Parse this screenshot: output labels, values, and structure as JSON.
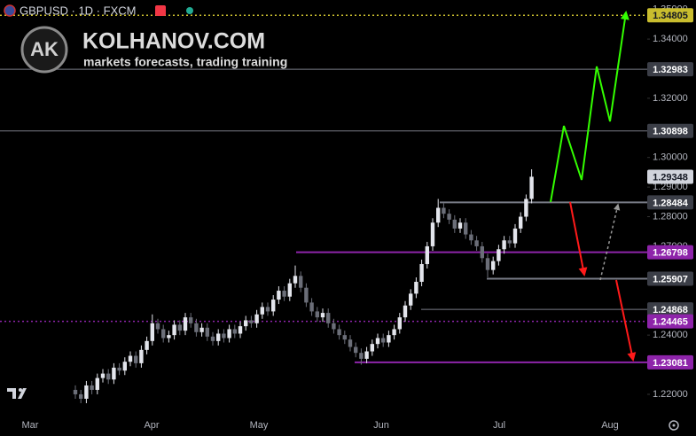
{
  "header": {
    "symbol": "GBPUSD · 1D · FXCM"
  },
  "watermark": {
    "logo": "AK",
    "title": "KOLHANOV.COM",
    "subtitle": "markets forecasts, trading training"
  },
  "chart_data": {
    "type": "candlestick",
    "up_color": "#e3e5ec",
    "down_color": "#6b6e78",
    "open": [
      1.2215,
      1.22,
      1.2185,
      1.223,
      1.2215,
      1.2255,
      1.227,
      1.225,
      1.229,
      1.228,
      1.231,
      1.233,
      1.2305,
      1.235,
      1.238,
      1.244,
      1.242,
      1.239,
      1.24,
      1.2435,
      1.2415,
      1.246,
      1.244,
      1.241,
      1.2425,
      1.2395,
      1.238,
      1.2405,
      1.239,
      1.242,
      1.2405,
      1.243,
      1.245,
      1.244,
      1.247,
      1.2495,
      1.248,
      1.252,
      1.255,
      1.253,
      1.2575,
      1.26,
      1.256,
      1.251,
      1.248,
      1.246,
      1.2475,
      1.244,
      1.242,
      1.24,
      1.2385,
      1.236,
      1.234,
      1.232,
      1.2345,
      1.237,
      1.239,
      1.2375,
      1.24,
      1.242,
      1.246,
      1.25,
      1.254,
      1.258,
      1.264,
      1.27,
      1.278,
      1.283,
      1.281,
      1.279,
      1.276,
      1.278,
      1.274,
      1.272,
      1.27,
      1.266,
      1.262,
      1.265,
      1.269,
      1.272,
      1.271,
      1.276,
      1.28,
      1.286
    ],
    "high": [
      1.223,
      1.2215,
      1.2245,
      1.2245,
      1.227,
      1.2285,
      1.2285,
      1.2305,
      1.2305,
      1.2325,
      1.2345,
      1.2345,
      1.2365,
      1.2395,
      1.247,
      1.2455,
      1.2435,
      1.2415,
      1.245,
      1.245,
      1.2475,
      1.2475,
      1.2455,
      1.244,
      1.244,
      1.241,
      1.242,
      1.242,
      1.2435,
      1.2435,
      1.2445,
      1.2465,
      1.2465,
      1.2485,
      1.251,
      1.251,
      1.2535,
      1.2565,
      1.2565,
      1.259,
      1.2635,
      1.2615,
      1.2575,
      1.2525,
      1.2495,
      1.249,
      1.249,
      1.2455,
      1.2435,
      1.2415,
      1.24,
      1.2375,
      1.2355,
      1.236,
      1.2385,
      1.2405,
      1.2405,
      1.2415,
      1.2435,
      1.2475,
      1.2515,
      1.2555,
      1.2595,
      1.2655,
      1.2715,
      1.2795,
      1.286,
      1.2845,
      1.2825,
      1.2805,
      1.2795,
      1.2795,
      1.2755,
      1.2735,
      1.2715,
      1.2675,
      1.2665,
      1.2705,
      1.2735,
      1.2735,
      1.2775,
      1.2815,
      1.2875,
      1.296
    ],
    "low": [
      1.2185,
      1.217,
      1.217,
      1.22,
      1.22,
      1.224,
      1.2235,
      1.2235,
      1.2265,
      1.2265,
      1.2295,
      1.229,
      1.229,
      1.2335,
      1.2365,
      1.2405,
      1.2375,
      1.2375,
      1.2385,
      1.24,
      1.24,
      1.2425,
      1.2395,
      1.2395,
      1.238,
      1.2365,
      1.2365,
      1.2375,
      1.2375,
      1.239,
      1.239,
      1.2415,
      1.2425,
      1.2425,
      1.2455,
      1.2465,
      1.2465,
      1.2505,
      1.2515,
      1.2515,
      1.256,
      1.2545,
      1.2495,
      1.2465,
      1.2445,
      1.2445,
      1.2425,
      1.2405,
      1.2385,
      1.237,
      1.2345,
      1.2325,
      1.23,
      1.2305,
      1.233,
      1.2355,
      1.236,
      1.236,
      1.2385,
      1.2405,
      1.2445,
      1.2485,
      1.2525,
      1.2565,
      1.2625,
      1.2685,
      1.2765,
      1.2795,
      1.2775,
      1.2745,
      1.2745,
      1.2725,
      1.2705,
      1.2685,
      1.2645,
      1.2595,
      1.2605,
      1.2635,
      1.2675,
      1.2695,
      1.2695,
      1.2745,
      1.2785,
      1.2845
    ],
    "close": [
      1.22,
      1.2185,
      1.223,
      1.2215,
      1.2255,
      1.227,
      1.225,
      1.229,
      1.228,
      1.231,
      1.233,
      1.2305,
      1.235,
      1.238,
      1.244,
      1.242,
      1.239,
      1.24,
      1.2435,
      1.2415,
      1.246,
      1.244,
      1.241,
      1.2425,
      1.2395,
      1.238,
      1.2405,
      1.239,
      1.242,
      1.2405,
      1.243,
      1.245,
      1.244,
      1.247,
      1.2495,
      1.248,
      1.252,
      1.255,
      1.253,
      1.2575,
      1.26,
      1.256,
      1.251,
      1.248,
      1.246,
      1.2475,
      1.244,
      1.242,
      1.24,
      1.2385,
      1.236,
      1.234,
      1.232,
      1.2345,
      1.237,
      1.239,
      1.2375,
      1.24,
      1.242,
      1.246,
      1.25,
      1.254,
      1.258,
      1.264,
      1.27,
      1.278,
      1.283,
      1.281,
      1.279,
      1.276,
      1.278,
      1.274,
      1.272,
      1.27,
      1.266,
      1.262,
      1.265,
      1.269,
      1.272,
      1.271,
      1.276,
      1.28,
      1.286,
      1.2935
    ],
    "x_labels": [
      "Mar",
      "Apr",
      "May",
      "Jun",
      "Jul",
      "Aug"
    ],
    "ylim": [
      1.2137,
      1.3532
    ],
    "yticks": [
      {
        "value": 1.35,
        "label": "1.35000"
      },
      {
        "value": 1.34,
        "label": "1.34000"
      },
      {
        "value": 1.32,
        "label": "1.32000"
      },
      {
        "value": 1.3,
        "label": "1.30000"
      },
      {
        "value": 1.29,
        "label": "1.29000"
      },
      {
        "value": 1.28,
        "label": "1.28000"
      },
      {
        "value": 1.27,
        "label": "1.27000"
      },
      {
        "value": 1.24,
        "label": "1.24000"
      },
      {
        "value": 1.22,
        "label": "1.22000"
      }
    ],
    "levels": [
      {
        "value": 1.34805,
        "color": "#c9bd2e",
        "style": "dotted"
      },
      {
        "value": 1.32983,
        "color": "#787b86",
        "style": "solid"
      },
      {
        "value": 1.30898,
        "color": "#787b86",
        "style": "solid"
      },
      {
        "value": 1.29348,
        "color": "#d1d4dc",
        "style": "none"
      },
      {
        "value": 1.28484,
        "color": "#787b86",
        "style": "thick"
      },
      {
        "value": 1.26798,
        "color": "#8e24aa",
        "style": "thick"
      },
      {
        "value": 1.25907,
        "color": "#787b86",
        "style": "thick"
      },
      {
        "value": 1.24868,
        "color": "#787b86",
        "style": "solid"
      },
      {
        "value": 1.24465,
        "color": "#8e24aa",
        "style": "dotted"
      },
      {
        "value": 1.23081,
        "color": "#8e24aa",
        "style": "thick"
      }
    ]
  }
}
